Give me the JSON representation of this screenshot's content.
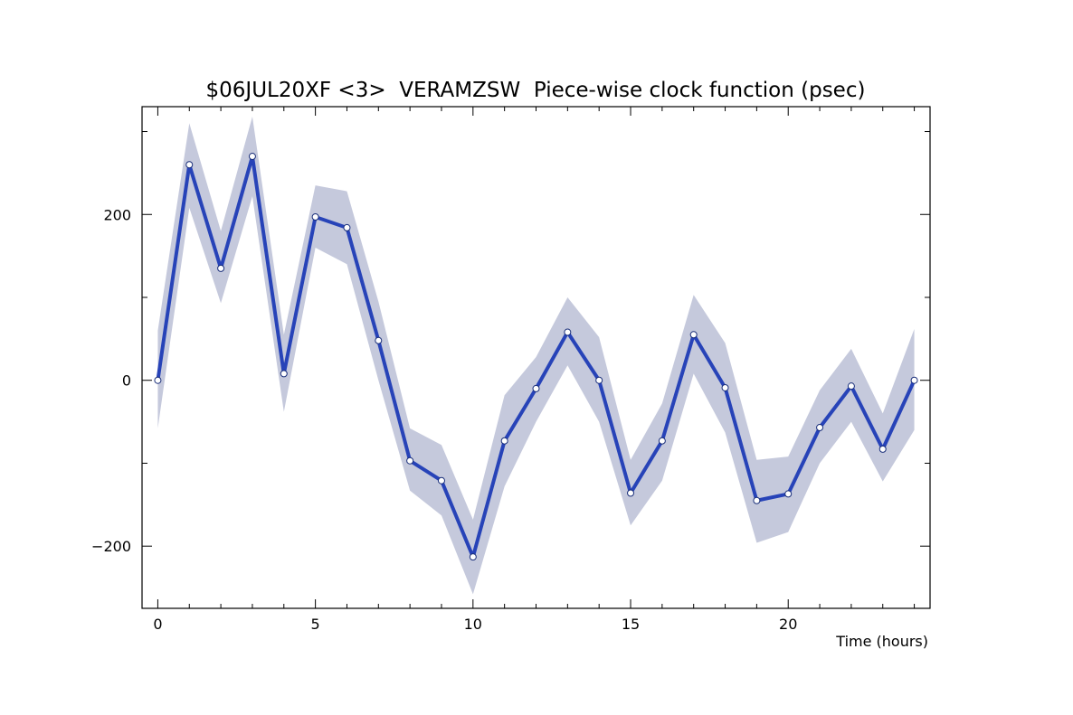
{
  "chart_data": {
    "type": "line",
    "title": "$06JUL20XF <3>  VERAMZSW  Piece-wise clock function (psec)",
    "xlabel": "Time (hours)",
    "ylabel": "",
    "xlim": [
      -0.5,
      24.5
    ],
    "ylim": [
      -275,
      330
    ],
    "x_ticks": [
      0,
      5,
      10,
      15,
      20
    ],
    "y_ticks": [
      -200,
      0,
      200
    ],
    "grid": false,
    "legend": "none",
    "colors": {
      "line": "#2743b8",
      "band": "#c5c9dc",
      "marker_fill": "#ffffff",
      "axis": "#000000"
    },
    "x": [
      0,
      1,
      2,
      3,
      4,
      5,
      6,
      7,
      8,
      9,
      10,
      11,
      12,
      13,
      14,
      15,
      16,
      17,
      18,
      19,
      20,
      21,
      22,
      23,
      24
    ],
    "series": [
      {
        "values": [
          0,
          260,
          135,
          270,
          8,
          197,
          184,
          48,
          -97,
          -121,
          -213,
          -73,
          -10,
          58,
          0,
          -136,
          -73,
          55,
          -9,
          -145,
          -137,
          -57,
          -7,
          -83,
          0
        ],
        "band_upper": [
          60,
          310,
          180,
          318,
          55,
          235,
          228,
          95,
          -58,
          -78,
          -168,
          -18,
          28,
          100,
          52,
          -96,
          -28,
          103,
          45,
          -96,
          -92,
          -12,
          38,
          -40,
          62
        ],
        "band_lower": [
          -58,
          208,
          93,
          222,
          -38,
          160,
          140,
          0,
          -133,
          -163,
          -258,
          -128,
          -50,
          18,
          -50,
          -175,
          -121,
          8,
          -63,
          -196,
          -183,
          -100,
          -50,
          -122,
          -60
        ]
      }
    ]
  }
}
